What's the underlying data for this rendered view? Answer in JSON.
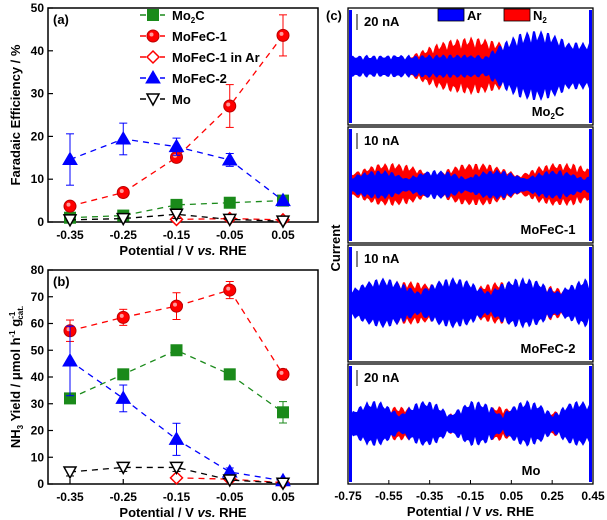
{
  "chart_data": [
    {
      "type": "line",
      "panel_label": "(a)",
      "xlabel": {
        "pre": "Potential / V ",
        "italic": "vs.",
        "post": " RHE"
      },
      "ylabel": "Faradaic Efficiency / %",
      "x": [
        -0.35,
        -0.25,
        -0.15,
        -0.05,
        0.05
      ],
      "x_tick_labels": [
        "-0.35",
        "-0.25",
        "-0.15",
        "-0.05",
        "0.05"
      ],
      "ylim": [
        0,
        50
      ],
      "y_ticks": [
        0,
        10,
        20,
        30,
        40,
        50
      ],
      "y_tick_labels": [
        "0",
        "10",
        "20",
        "30",
        "40",
        "50"
      ],
      "grid": false,
      "legend_placement": "top-center",
      "series": [
        {
          "name": "Mo2C",
          "name_main": "Mo",
          "name_sub": "2",
          "name_post": "C",
          "color": "#1a8a1a",
          "marker": "square",
          "fill": true,
          "x": [
            -0.35,
            -0.25,
            -0.15,
            -0.05,
            0.05
          ],
          "values": [
            1.0,
            1.5,
            4.0,
            4.5,
            5.0
          ],
          "errors": [
            0.3,
            0.4,
            0.5,
            0.4,
            0.5
          ]
        },
        {
          "name": "MoFeC-1",
          "color": "#ff0000",
          "marker": "circle",
          "fill": true,
          "x": [
            -0.35,
            -0.25,
            -0.15,
            -0.05,
            0.05
          ],
          "values": [
            3.7,
            6.9,
            15.1,
            27.1,
            43.6
          ],
          "errors": [
            0.3,
            0.4,
            0.5,
            5.0,
            4.8
          ]
        },
        {
          "name": "MoFeC-1 in Ar",
          "color": "#ff0000",
          "marker": "diamond",
          "fill": false,
          "x": [
            -0.15,
            -0.05,
            0.05
          ],
          "values": [
            0.6,
            0.8,
            0.5
          ],
          "errors": [
            0.2,
            0.2,
            0.2
          ]
        },
        {
          "name": "MoFeC-2",
          "color": "#0000ff",
          "marker": "triangle-up",
          "fill": true,
          "x": [
            -0.35,
            -0.25,
            -0.15,
            -0.05,
            0.05
          ],
          "values": [
            14.6,
            19.4,
            17.6,
            14.5,
            5.0
          ],
          "errors": [
            6.0,
            3.7,
            2.0,
            1.5,
            0.5
          ]
        },
        {
          "name": "Mo",
          "color": "#000000",
          "marker": "triangle-down",
          "fill": false,
          "x": [
            -0.35,
            -0.25,
            -0.15,
            -0.05,
            0.05
          ],
          "values": [
            0.5,
            0.8,
            1.8,
            0.6,
            0.2
          ],
          "errors": [
            0.3,
            0.4,
            1.0,
            0.2,
            0.1
          ]
        }
      ]
    },
    {
      "type": "line",
      "panel_label": "(b)",
      "xlabel": {
        "pre": "Potential / V ",
        "italic": "vs.",
        "post": " RHE"
      },
      "ylabel": {
        "a": "NH",
        "a_sub": "3",
        "b": " Yield / μmol h",
        "b_sup": "-1",
        "c": " g",
        "c_sub": "cat.",
        "c_sup": "-1"
      },
      "x": [
        -0.35,
        -0.25,
        -0.15,
        -0.05,
        0.05
      ],
      "x_tick_labels": [
        "-0.35",
        "-0.25",
        "-0.15",
        "-0.05",
        "0.05"
      ],
      "ylim": [
        0,
        80
      ],
      "y_ticks": [
        0,
        10,
        20,
        30,
        40,
        50,
        60,
        70,
        80
      ],
      "y_tick_labels": [
        "0",
        "10",
        "20",
        "30",
        "40",
        "50",
        "60",
        "70",
        "80"
      ],
      "grid": false,
      "series": [
        {
          "name": "Mo2C",
          "color": "#1a8a1a",
          "marker": "square",
          "fill": true,
          "x": [
            -0.35,
            -0.25,
            -0.15,
            -0.05,
            0.05
          ],
          "values": [
            32,
            41,
            50,
            41,
            26.8
          ],
          "errors": [
            0.8,
            2.0,
            0.8,
            2.0,
            4.0
          ]
        },
        {
          "name": "MoFeC-1",
          "color": "#ff0000",
          "marker": "circle",
          "fill": true,
          "x": [
            -0.35,
            -0.25,
            -0.15,
            -0.05,
            0.05
          ],
          "values": [
            57.3,
            62.3,
            66.5,
            72.5,
            41
          ],
          "errors": [
            4.0,
            3.0,
            5.0,
            3.2,
            2.0
          ]
        },
        {
          "name": "MoFeC-1 in Ar",
          "color": "#ff0000",
          "marker": "diamond",
          "fill": false,
          "x": [
            -0.15,
            -0.05,
            0.05
          ],
          "values": [
            2.3,
            1.8,
            0.5
          ],
          "errors": [
            0.3,
            0.3,
            0.2
          ]
        },
        {
          "name": "MoFeC-2",
          "color": "#0000ff",
          "marker": "triangle-up",
          "fill": true,
          "x": [
            -0.35,
            -0.25,
            -0.15,
            -0.05,
            0.05
          ],
          "values": [
            46,
            32,
            16.7,
            4.5,
            1.2
          ],
          "errors": [
            13,
            5,
            6,
            1.5,
            0.5
          ]
        },
        {
          "name": "Mo",
          "color": "#000000",
          "marker": "triangle-down",
          "fill": false,
          "x": [
            -0.35,
            -0.25,
            -0.15,
            -0.05,
            0.05
          ],
          "values": [
            4.5,
            6.2,
            6.2,
            1.5,
            0.3
          ],
          "errors": [
            1.5,
            1.5,
            1.5,
            0.3,
            0.2
          ]
        }
      ]
    },
    {
      "type": "area",
      "panel_label": "(c)",
      "xlabel": {
        "pre": "Potential / V ",
        "italic": "vs.",
        "post": " RHE"
      },
      "ylabel": "Current",
      "xlim": [
        -0.75,
        0.45
      ],
      "x_ticks": [
        -0.75,
        -0.55,
        -0.35,
        -0.15,
        0.05,
        0.25,
        0.45
      ],
      "x_tick_labels": [
        "-0.75",
        "-0.55",
        "-0.35",
        "-0.15",
        "0.05",
        "0.25",
        "0.45"
      ],
      "legend": [
        {
          "name": "Ar",
          "color": "#0000ff"
        },
        {
          "name": "N2",
          "main": "N",
          "sub": "2",
          "color": "#ff0000"
        }
      ],
      "legend_placement": "top-center",
      "subpanels": [
        {
          "name": "Mo2C",
          "main": "Mo",
          "sub": "2",
          "post": "C",
          "scale_bar": "20 nA"
        },
        {
          "name": "MoFeC-1",
          "main": "MoFeC-1",
          "sub": "",
          "post": "",
          "scale_bar": "10 nA"
        },
        {
          "name": "MoFeC-2",
          "main": "MoFeC-2",
          "sub": "",
          "post": "",
          "scale_bar": "10 nA"
        },
        {
          "name": "Mo",
          "main": "Mo",
          "sub": "",
          "post": "",
          "scale_bar": "20 nA"
        }
      ]
    }
  ]
}
